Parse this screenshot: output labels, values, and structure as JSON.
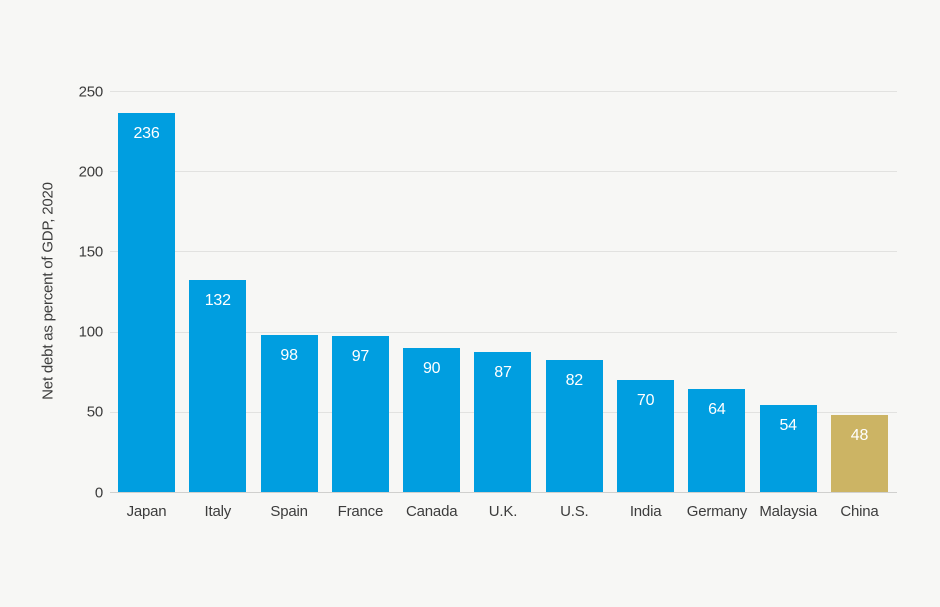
{
  "chart_data": {
    "type": "bar",
    "title": "",
    "ylabel": "Net debt as percent of GDP, 2020",
    "xlabel": "",
    "categories": [
      "Japan",
      "Italy",
      "Spain",
      "France",
      "Canada",
      "U.K.",
      "U.S.",
      "India",
      "Germany",
      "Malaysia",
      "China"
    ],
    "values": [
      236,
      132,
      98,
      97,
      90,
      87,
      82,
      70,
      64,
      54,
      48
    ],
    "value_labels": [
      "236",
      "132",
      "98",
      "97",
      "90",
      "87",
      "82",
      "70",
      "64",
      "54",
      "48"
    ],
    "highlight_index": 10,
    "yticks": [
      0,
      50,
      100,
      150,
      200,
      250
    ],
    "ylim": [
      0,
      250
    ],
    "grid": true,
    "legend": "none",
    "colors": {
      "bar": "#009EE0",
      "highlight_bar": "#CCB464",
      "background": "#F7F7F5",
      "gridline": "#E2E2E0",
      "zero_line": "#D0D0CE",
      "axis_text": "#3C3C3C",
      "value_text": "#FFFFFF"
    }
  }
}
